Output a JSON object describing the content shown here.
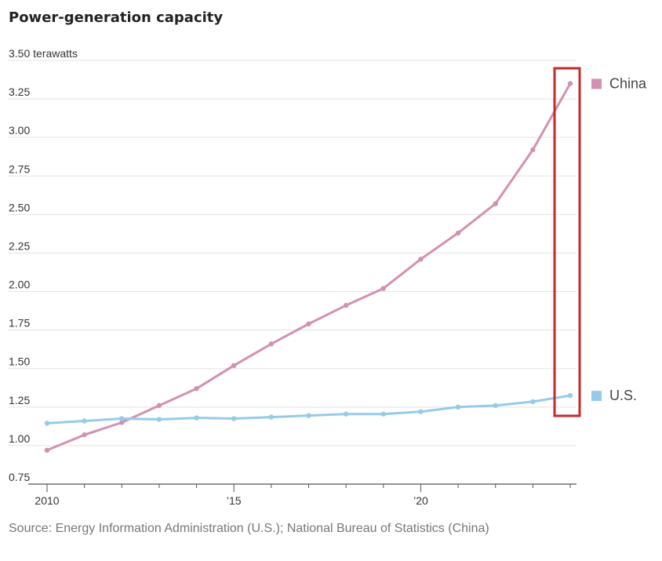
{
  "chart_data": {
    "type": "line",
    "title": "Power-generation capacity",
    "ylabel": "terawatts",
    "y_unit": "terawatts",
    "ylim": [
      0.75,
      3.5
    ],
    "y_ticks": [
      0.75,
      1.0,
      1.25,
      1.5,
      1.75,
      2.0,
      2.25,
      2.5,
      2.75,
      3.0,
      3.25,
      3.5
    ],
    "y_tick_labels": [
      "0.75",
      "1.00",
      "1.25",
      "1.50",
      "1.75",
      "2.00",
      "2.25",
      "2.50",
      "2.75",
      "3.00",
      "3.25",
      "3.50"
    ],
    "y_top_tick_label": "3.50 terawatts",
    "xlim": [
      2010,
      2024
    ],
    "x_ticks": [
      2010,
      2015,
      2020
    ],
    "x_tick_labels": [
      "2010",
      "’15",
      "’20"
    ],
    "x": [
      2010,
      2011,
      2012,
      2013,
      2014,
      2015,
      2016,
      2017,
      2018,
      2019,
      2020,
      2021,
      2022,
      2023,
      2024
    ],
    "series": [
      {
        "name": "China",
        "color": "#d291b1",
        "values": [
          0.97,
          1.07,
          1.15,
          1.26,
          1.37,
          1.52,
          1.66,
          1.79,
          1.91,
          2.02,
          2.21,
          2.38,
          2.57,
          2.92,
          3.35
        ]
      },
      {
        "name": "U.S.",
        "color": "#96cbe8",
        "values": [
          1.145,
          1.16,
          1.175,
          1.17,
          1.18,
          1.175,
          1.185,
          1.195,
          1.205,
          1.205,
          1.22,
          1.25,
          1.26,
          1.285,
          1.325
        ]
      }
    ],
    "grid": true,
    "legend": "right",
    "highlight_box_color": "#c8282c",
    "source": "Source: Energy Information Administration (U.S.); National Bureau of Statistics (China)"
  }
}
